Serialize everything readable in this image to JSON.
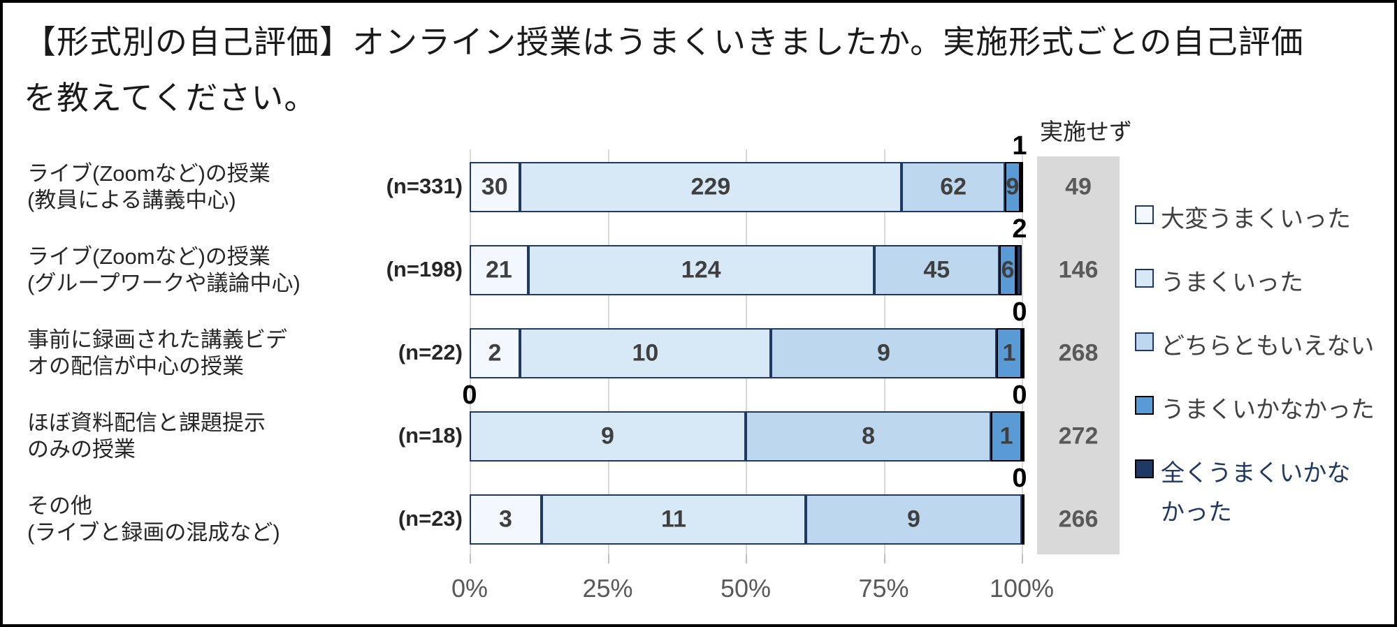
{
  "title": {
    "line1": "【形式別の自己評価】オンライン授業はうまくいきましたか。実施形式ごとの自己評価",
    "line2": "を教えてください。"
  },
  "not_implemented": {
    "header": "実施せず",
    "values": [
      49,
      146,
      268,
      272,
      266
    ]
  },
  "x_axis": {
    "ticks": [
      "0%",
      "25%",
      "50%",
      "75%",
      "100%"
    ],
    "range_percent": [
      0,
      100
    ]
  },
  "legend": {
    "items": [
      {
        "label": "大変うまくいった",
        "label_lines": [
          "大変うまくいった"
        ],
        "fill": "#F2F8FD",
        "border": "#1F3864",
        "text_color": "#404040"
      },
      {
        "label": "うまくいった",
        "label_lines": [
          "うまくいった"
        ],
        "fill": "#D7E9F7",
        "border": "#1F3864",
        "text_color": "#404040"
      },
      {
        "label": "どちらともいえない",
        "label_lines": [
          "どちらともいえない"
        ],
        "fill": "#BDD7EE",
        "border": "#1F3864",
        "text_color": "#404040"
      },
      {
        "label": "うまくいかなかった",
        "label_lines": [
          "うまくいかなかった"
        ],
        "fill": "#5B9BD5",
        "border": "#000000",
        "text_color": "#404040"
      },
      {
        "label": "全くうまくいかなかった",
        "label_lines": [
          "全くうまくいかな",
          "かった"
        ],
        "fill": "#1F3864",
        "border": "#000000",
        "text_color": "#1F3864"
      }
    ]
  },
  "chart_data": {
    "type": "bar",
    "orientation": "horizontal",
    "stacked": "100%",
    "grid": true,
    "x_ticks": [
      "0%",
      "25%",
      "50%",
      "75%",
      "100%"
    ],
    "categories": [
      {
        "label_lines": [
          "ライブ(Zoomなど)の授業",
          "(教員による講義中心)"
        ],
        "n_label": "(n=331)",
        "n": 331
      },
      {
        "label_lines": [
          "ライブ(Zoomなど)の授業",
          "(グループワークや議論中心)"
        ],
        "n_label": "(n=198)",
        "n": 198
      },
      {
        "label_lines": [
          "事前に録画された講義ビデ",
          "オの配信が中心の授業"
        ],
        "n_label": "(n=22)",
        "n": 22
      },
      {
        "label_lines": [
          "ほぼ資料配信と課題提示",
          "のみの授業"
        ],
        "n_label": "(n=18)",
        "n": 18
      },
      {
        "label_lines": [
          "その他",
          "(ライブと録画の混成など)"
        ],
        "n_label": "(n=23)",
        "n": 23
      }
    ],
    "series": [
      {
        "name": "大変うまくいった",
        "values": [
          30,
          21,
          2,
          0,
          3
        ],
        "fill": "#F2F8FD",
        "border": "#1F3864"
      },
      {
        "name": "うまくいった",
        "values": [
          229,
          124,
          10,
          9,
          11
        ],
        "fill": "#D7E9F7",
        "border": "#1F3864"
      },
      {
        "name": "どちらともいえない",
        "values": [
          62,
          45,
          9,
          8,
          9
        ],
        "fill": "#BDD7EE",
        "border": "#1F3864"
      },
      {
        "name": "うまくいかなかった",
        "values": [
          9,
          6,
          1,
          1,
          0
        ],
        "fill": "#5B9BD5",
        "border": "#000000"
      },
      {
        "name": "全くうまくいかなかった",
        "values": [
          1,
          2,
          0,
          0,
          0
        ],
        "fill": "#1F3864",
        "border": "#000000"
      }
    ],
    "not_implemented_values": [
      49,
      146,
      268,
      272,
      266
    ],
    "colors": {
      "gray_column": "#D9D9D9",
      "gridline": "#D9D9D9",
      "axis_text": "#595959",
      "value_text": "#3F3F3F"
    }
  }
}
